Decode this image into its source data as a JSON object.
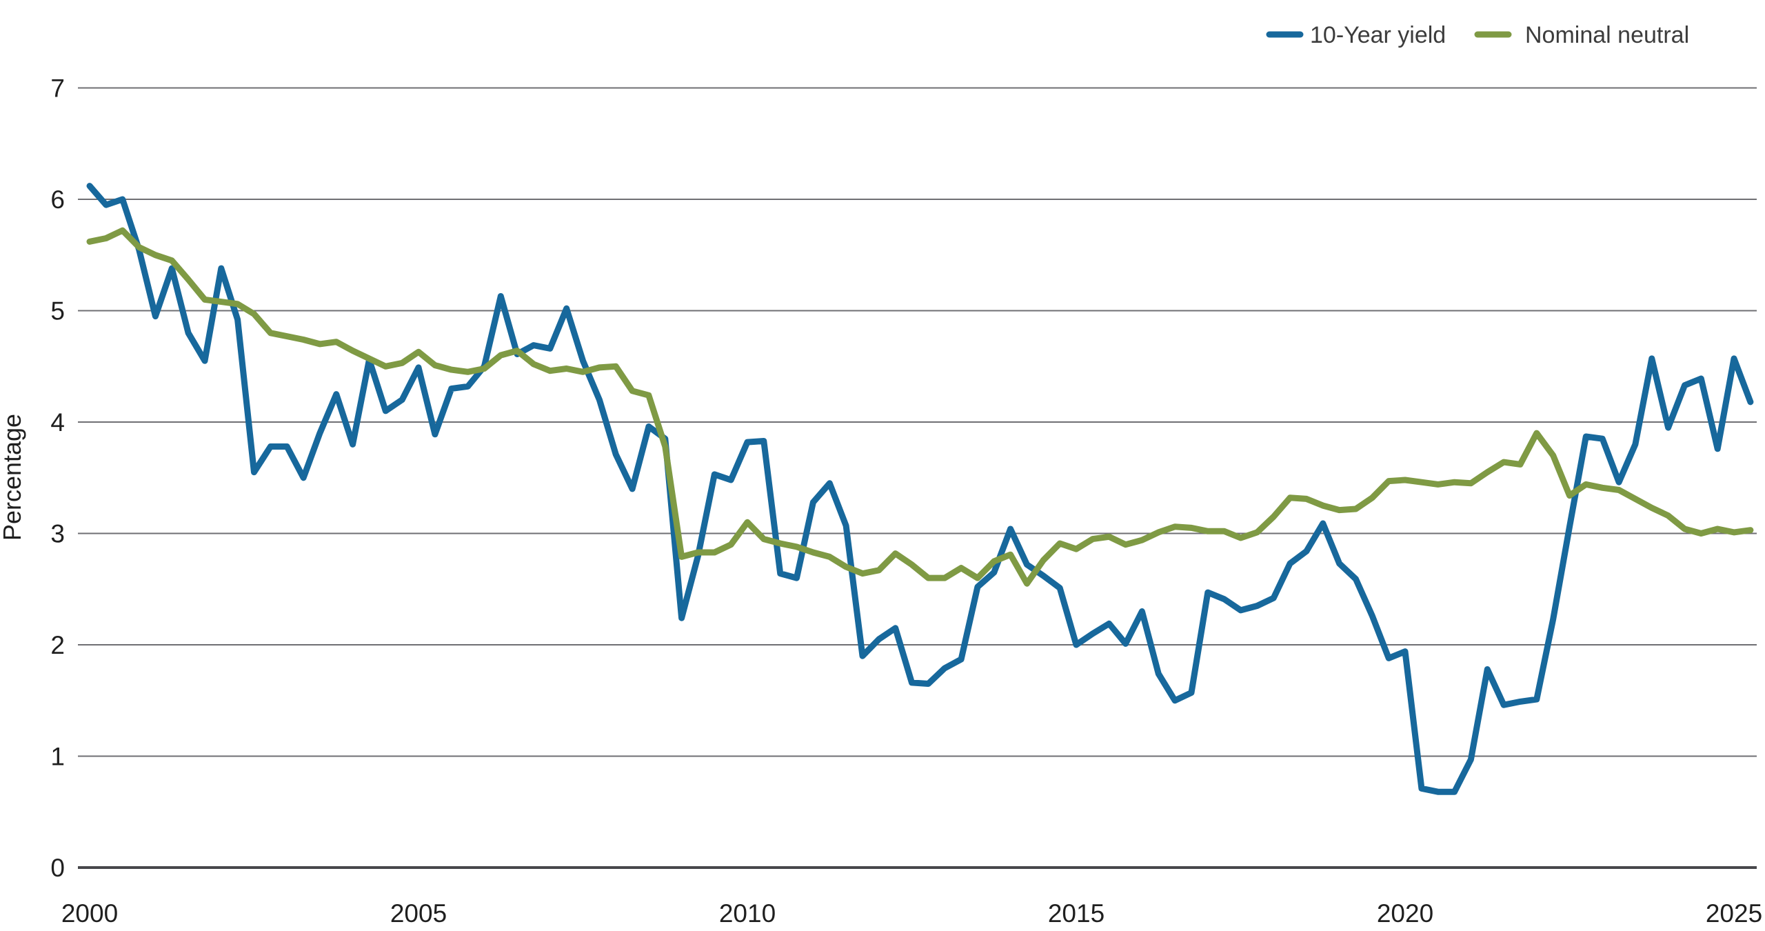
{
  "chart_data": {
    "type": "line",
    "title": "",
    "xlabel": "",
    "ylabel": "Percentage",
    "x_start": 2000,
    "x_step": 0.25,
    "xlim": [
      2000,
      2025.3
    ],
    "ylim": [
      0,
      7
    ],
    "y_ticks": [
      0,
      1,
      2,
      3,
      4,
      5,
      6,
      7
    ],
    "x_ticks": [
      2000,
      2005,
      2010,
      2015,
      2020,
      2025
    ],
    "grid": "horizontal",
    "legend_position": "top-right",
    "series": [
      {
        "name": "10-Year yield",
        "color": "#17689c",
        "values": [
          6.12,
          5.95,
          6.0,
          5.55,
          4.95,
          5.38,
          4.8,
          4.55,
          5.38,
          4.92,
          3.55,
          3.78,
          3.78,
          3.5,
          3.9,
          4.25,
          3.8,
          4.56,
          4.1,
          4.2,
          4.49,
          3.89,
          4.3,
          4.32,
          4.5,
          5.13,
          4.61,
          4.69,
          4.66,
          5.02,
          4.55,
          4.2,
          3.71,
          3.4,
          3.96,
          3.85,
          2.24,
          2.8,
          3.53,
          3.48,
          3.82,
          3.83,
          2.64,
          2.6,
          3.28,
          3.45,
          3.07,
          1.9,
          2.05,
          2.15,
          1.66,
          1.65,
          1.79,
          1.87,
          2.52,
          2.65,
          3.04,
          2.72,
          2.62,
          2.51,
          2.0,
          2.1,
          2.19,
          2.01,
          2.3,
          1.74,
          1.5,
          1.57,
          2.47,
          2.41,
          2.31,
          2.35,
          2.42,
          2.73,
          2.84,
          3.09,
          2.73,
          2.59,
          2.26,
          1.88,
          1.94,
          0.71,
          0.68,
          0.68,
          0.97,
          1.78,
          1.46,
          1.49,
          1.51,
          2.23,
          3.06,
          3.87,
          3.85,
          3.46,
          3.8,
          4.57,
          3.95,
          4.33,
          4.39,
          3.76,
          4.57,
          4.18
        ]
      },
      {
        "name": "Nominal neutral",
        "color": "#7f9a44",
        "values": [
          5.62,
          5.65,
          5.72,
          5.57,
          5.5,
          5.45,
          5.28,
          5.1,
          5.08,
          5.06,
          4.97,
          4.8,
          4.77,
          4.74,
          4.7,
          4.72,
          4.64,
          4.57,
          4.5,
          4.53,
          4.63,
          4.51,
          4.47,
          4.45,
          4.48,
          4.6,
          4.64,
          4.52,
          4.46,
          4.48,
          4.45,
          4.49,
          4.5,
          4.28,
          4.24,
          3.78,
          2.79,
          2.83,
          2.83,
          2.9,
          3.1,
          2.95,
          2.91,
          2.88,
          2.83,
          2.79,
          2.7,
          2.64,
          2.67,
          2.82,
          2.72,
          2.6,
          2.6,
          2.69,
          2.6,
          2.75,
          2.81,
          2.55,
          2.76,
          2.91,
          2.86,
          2.95,
          2.97,
          2.9,
          2.94,
          3.01,
          3.06,
          3.05,
          3.02,
          3.02,
          2.96,
          3.01,
          3.15,
          3.32,
          3.31,
          3.25,
          3.21,
          3.22,
          3.32,
          3.47,
          3.48,
          3.46,
          3.44,
          3.46,
          3.45,
          3.55,
          3.64,
          3.62,
          3.9,
          3.7,
          3.34,
          3.44,
          3.41,
          3.39,
          3.31,
          3.23,
          3.16,
          3.04,
          3.0,
          3.04,
          3.01,
          3.03
        ]
      }
    ]
  },
  "axes": {
    "y_label": "Percentage",
    "y_tick_labels": [
      "0",
      "1",
      "2",
      "3",
      "4",
      "5",
      "6",
      "7"
    ],
    "x_tick_labels": [
      "2000",
      "2005",
      "2010",
      "2015",
      "2020",
      "2025"
    ]
  },
  "legend": {
    "items": [
      {
        "label": "10-Year yield",
        "color": "#17689c"
      },
      {
        "label": "Nominal neutral",
        "color": "#7f9a44"
      }
    ]
  },
  "colors": {
    "background": "#ffffff",
    "gridline": "#6f6f73",
    "axis_line": "#47474b",
    "tick_label": "#1f1f1f",
    "legend_text": "#3c3c3c",
    "series_blue": "#17689c",
    "series_green": "#7f9a44"
  }
}
